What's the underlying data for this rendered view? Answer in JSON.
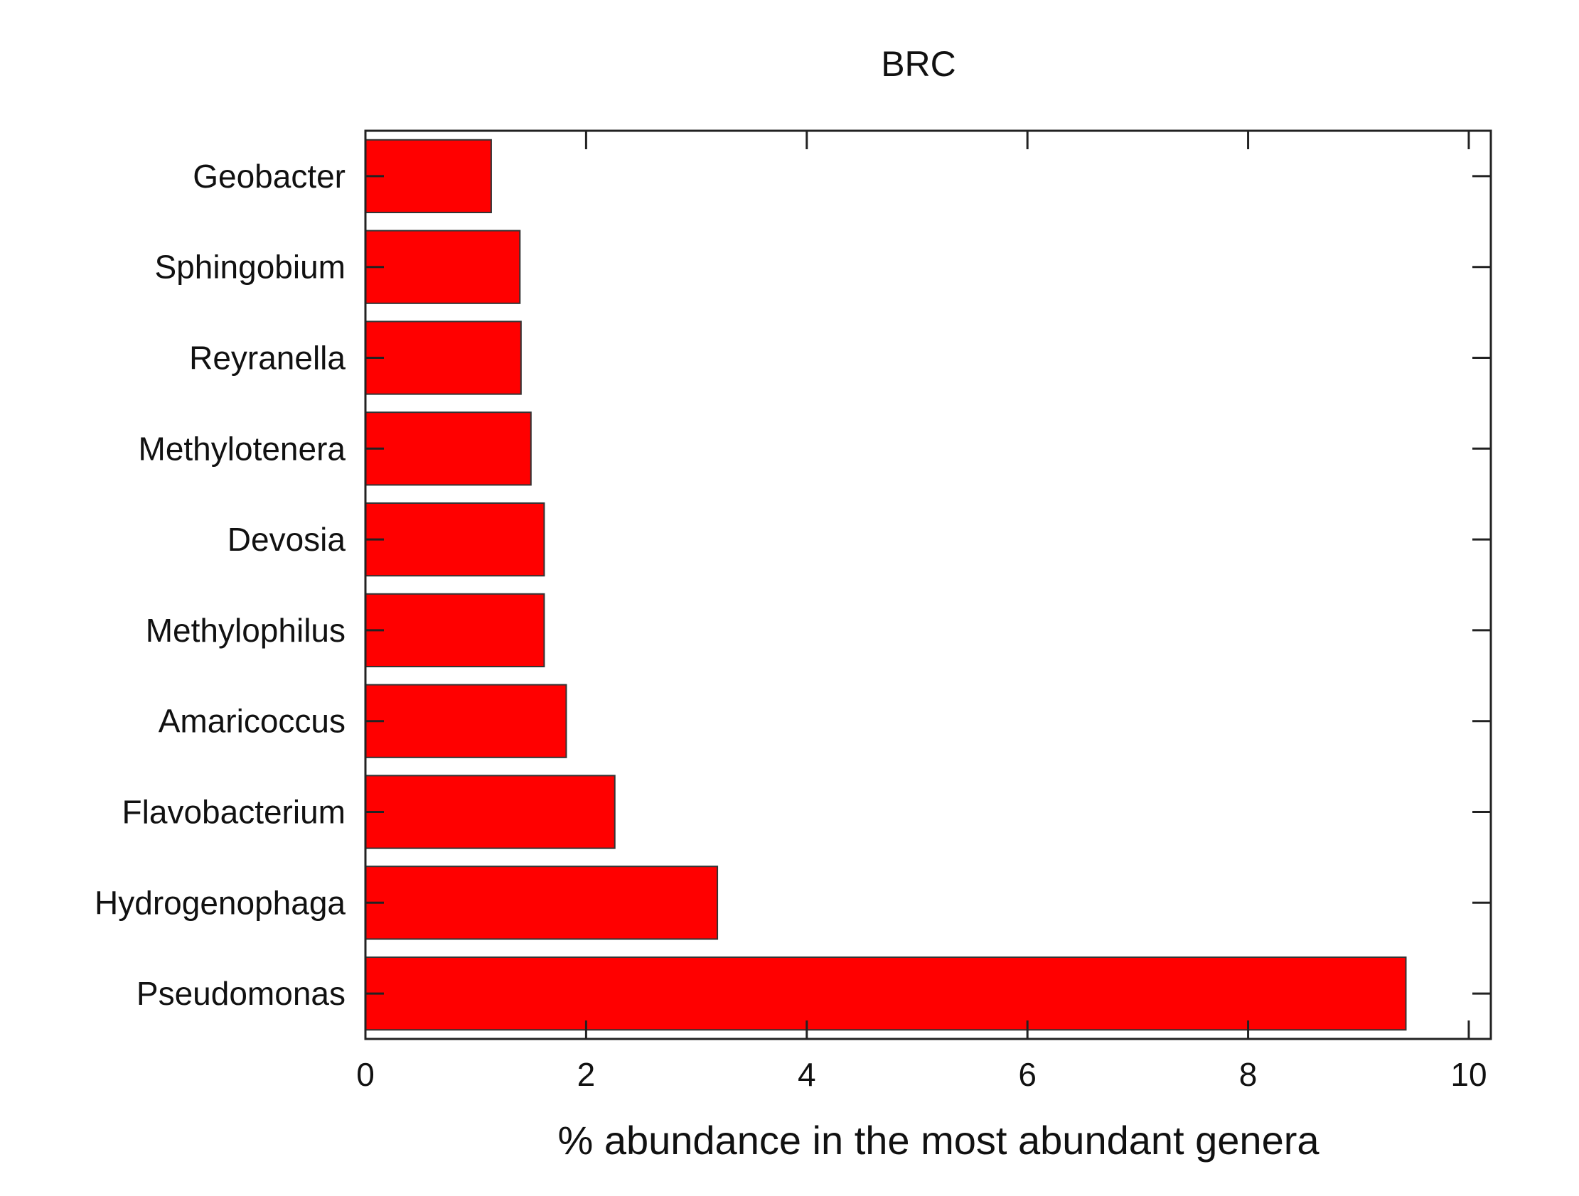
{
  "chart_data": {
    "type": "bar",
    "orientation": "horizontal",
    "title": "BRC",
    "xlabel": "% abundance in the most abundant genera",
    "ylabel": "",
    "xlim": [
      0,
      10.2
    ],
    "xticks": [
      0,
      2,
      4,
      6,
      8,
      10
    ],
    "categories": [
      "Geobacter",
      "Sphingobium",
      "Reyranella",
      "Methylotenera",
      "Devosia",
      "Methylophilus",
      "Amaricoccus",
      "Flavobacterium",
      "Hydrogenophaga",
      "Pseudomonas"
    ],
    "values": [
      1.14,
      1.4,
      1.41,
      1.5,
      1.62,
      1.62,
      1.82,
      2.26,
      3.19,
      9.43
    ],
    "grid": false,
    "legend": "none",
    "bar_color": "#ff0000",
    "bar_edge_color": "#333333"
  }
}
